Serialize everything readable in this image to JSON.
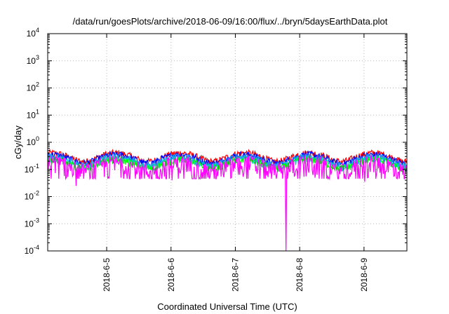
{
  "chart_data": {
    "type": "line",
    "title": "/data/run/goesPlots/archive/2018-06-09/16:00/flux/../bryn/5daysEarthData.plot",
    "xlabel": "Coordinated Universal Time (UTC)",
    "ylabel": "cGy/day",
    "yscale": "log",
    "ylim": [
      0.0001,
      10000
    ],
    "y_ticks": [
      {
        "base": "10",
        "exp": "4",
        "value": 10000
      },
      {
        "base": "10",
        "exp": "3",
        "value": 1000
      },
      {
        "base": "10",
        "exp": "2",
        "value": 100
      },
      {
        "base": "10",
        "exp": "1",
        "value": 10
      },
      {
        "base": "10",
        "exp": "0",
        "value": 1
      },
      {
        "base": "10",
        "exp": "-1",
        "value": 0.1
      },
      {
        "base": "10",
        "exp": "-2",
        "value": 0.01
      },
      {
        "base": "10",
        "exp": "-3",
        "value": 0.001
      },
      {
        "base": "10",
        "exp": "-4",
        "value": 0.0001
      }
    ],
    "xlim": [
      "2018-06-04 02:00",
      "2018-06-09 16:00"
    ],
    "x_ticks": [
      "2018-6-5",
      "2018-6-6",
      "2018-6-7",
      "2018-6-8",
      "2018-6-9"
    ],
    "grid": true,
    "series": [
      {
        "color": "#ff0000",
        "level": 0.3,
        "noise": 0.09,
        "dips": []
      },
      {
        "color": "#0000ff",
        "level": 0.26,
        "noise": 0.08,
        "dips": []
      },
      {
        "color": "#1e90ff",
        "level": 0.22,
        "noise": 0.07,
        "dips": []
      },
      {
        "color": "#00c8c8",
        "level": 0.19,
        "noise": 0.06,
        "dips": []
      },
      {
        "color": "#00ff00",
        "level": 0.17,
        "noise": 0.05,
        "dips": []
      },
      {
        "color": "#ff00ff",
        "level": 0.13,
        "noise": 0.12,
        "dips": [
          {
            "t": "2018-06-04 12:30",
            "value": 0.025
          },
          {
            "t": "2018-06-06 00:20",
            "value": 0.04
          },
          {
            "t": "2018-06-06 22:30",
            "value": 0.05
          },
          {
            "t": "2018-06-07 18:50",
            "value": 0.0001
          },
          {
            "t": "2018-06-09 00:20",
            "value": 0.035
          }
        ]
      }
    ]
  }
}
